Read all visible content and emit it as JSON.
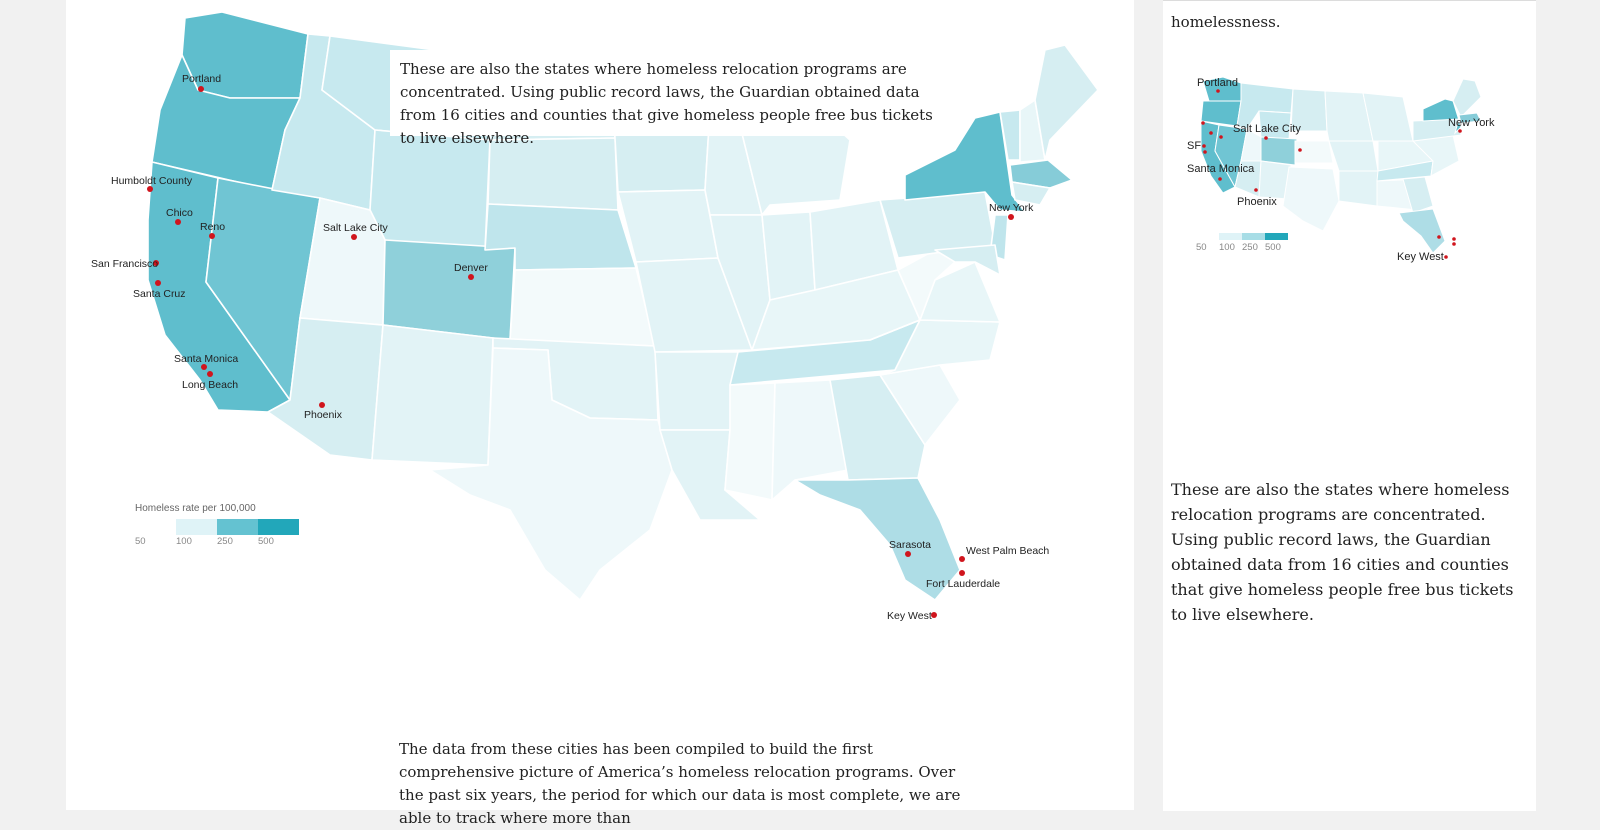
{
  "legend": {
    "title": "Homeless rate per 100,000",
    "ticks": [
      "50",
      "100",
      "250",
      "500"
    ],
    "colors": [
      "#dff3f7",
      "#a7dde6",
      "#64c2d1",
      "#22a7ba"
    ]
  },
  "colors": {
    "very_light": "#eef8fa",
    "light": "#daf0f4",
    "medium": "#b9e3ea",
    "strong": "#86ccd8",
    "strongest": "#5fbecd",
    "city_marker": "#d0151d"
  },
  "main_map": {
    "cities": [
      "Portland",
      "Humboldt County",
      "Chico",
      "Reno",
      "San Francisco",
      "Santa Cruz",
      "Santa Monica",
      "Long Beach",
      "Salt Lake City",
      "Denver",
      "Phoenix",
      "New York",
      "Sarasota",
      "West Palm Beach",
      "Fort Lauderdale",
      "Key West"
    ]
  },
  "mini_map": {
    "cities": [
      "Portland",
      "New York",
      "Salt Lake City",
      "SF",
      "Santa Monica",
      "Phoenix",
      "Key West"
    ]
  },
  "text": {
    "callout": "These are also the states where homeless relocation programs are concentrated. Using public record laws, the Guardian obtained data from 16 cities and counties that give homeless people free bus tickets to live elsewhere.",
    "body": "The data from these cities has been compiled to build the first comprehensive picture of America’s homeless relocation programs. Over the past six years, the period for which our data is most complete, we are able to track where more than",
    "side_top": "homelessness.",
    "side_callout": "These are also the states where homeless relocation programs are concentrated. Using public record laws, the Guardian obtained data from 16 cities and counties that give homeless people free bus tickets to live elsewhere."
  }
}
